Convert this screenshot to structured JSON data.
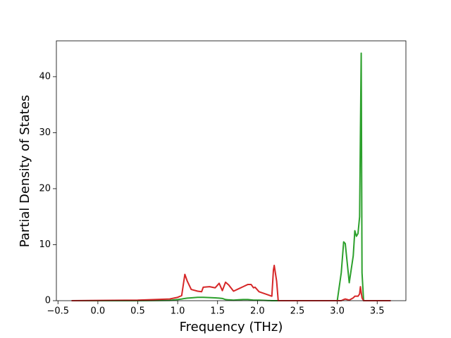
{
  "chart_data": {
    "type": "line",
    "x_label": "Frequency (THz)",
    "y_label": "Partial Density of States",
    "x": [
      -0.33,
      0.5,
      0.9,
      1.0,
      1.05,
      1.09,
      1.12,
      1.17,
      1.25,
      1.3,
      1.32,
      1.4,
      1.47,
      1.52,
      1.56,
      1.6,
      1.64,
      1.7,
      1.76,
      1.82,
      1.88,
      1.92,
      1.95,
      1.97,
      2.02,
      2.1,
      2.18,
      2.2,
      2.21,
      2.24,
      2.26,
      3.0,
      3.05,
      3.08,
      3.1,
      3.15,
      3.2,
      3.22,
      3.24,
      3.26,
      3.28,
      3.29,
      3.3,
      3.31,
      3.33,
      3.67
    ],
    "series": [
      {
        "color": "#2ca02c",
        "values": [
          0,
          0,
          0.05,
          0.2,
          0.3,
          0.4,
          0.45,
          0.5,
          0.6,
          0.6,
          0.6,
          0.55,
          0.5,
          0.45,
          0.4,
          0.2,
          0.15,
          0.1,
          0.15,
          0.2,
          0.2,
          0.15,
          0.1,
          0.1,
          0.1,
          0.05,
          0,
          0,
          0,
          0,
          0,
          0,
          5,
          10.5,
          10.2,
          3.2,
          8,
          12.5,
          11.5,
          12,
          15,
          30,
          44.2,
          5,
          0,
          0
        ]
      },
      {
        "color": "#d62728",
        "values": [
          0,
          0.1,
          0.3,
          0.6,
          0.9,
          4.7,
          3.5,
          2,
          1.7,
          1.6,
          2.4,
          2.5,
          2.3,
          3.1,
          1.8,
          3.3,
          2.8,
          1.7,
          2.1,
          2.5,
          2.9,
          2.9,
          2.3,
          2.4,
          1.6,
          1.2,
          0.8,
          5.5,
          6.3,
          3.5,
          0,
          0,
          0,
          0.2,
          0.3,
          0.1,
          0.5,
          0.8,
          0.8,
          0.8,
          1.2,
          2.5,
          1.5,
          0.5,
          0,
          0
        ]
      }
    ],
    "xlim": [
      -0.52,
      3.86
    ],
    "xticks": [
      {
        "value": -0.5,
        "label": "−0.5"
      },
      {
        "value": 0,
        "label": "0.0"
      },
      0.5,
      {
        "value": 1,
        "label": "1.0"
      },
      1.5,
      {
        "value": 2,
        "label": "2.0"
      },
      2.5,
      {
        "value": 3,
        "label": "3.0"
      },
      3.5
    ],
    "ylim": [
      0,
      46.4
    ],
    "yticks": [
      0,
      10,
      20,
      30,
      40
    ],
    "grid": false
  }
}
